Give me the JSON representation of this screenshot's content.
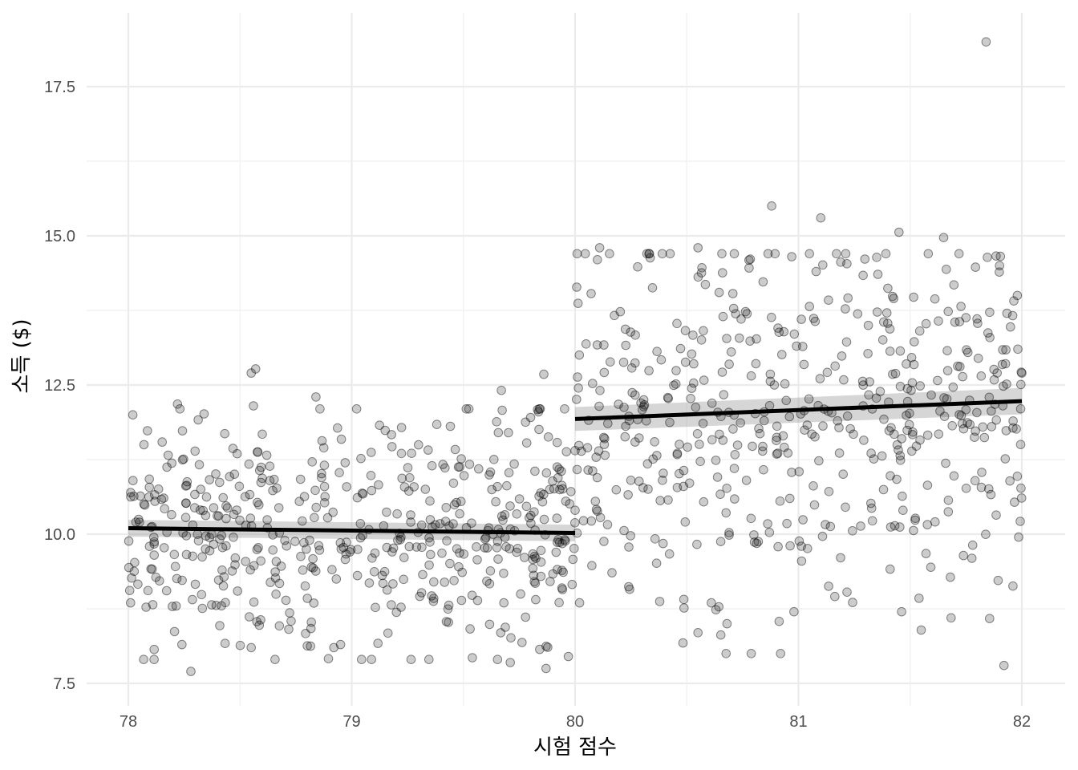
{
  "chart_data": {
    "type": "scatter",
    "xlabel": "시험 점수",
    "ylabel": "소득 ($)",
    "xlim": [
      77.83,
      82.2
    ],
    "ylim": [
      7.05,
      18.5
    ],
    "x_ticks": [
      78,
      79,
      80,
      81,
      82
    ],
    "x_tick_labels": [
      "78",
      "79",
      "80",
      "81",
      "82"
    ],
    "y_ticks": [
      7.5,
      10.0,
      12.5,
      15.0,
      17.5
    ],
    "y_tick_labels": [
      "7.5",
      "10.0",
      "12.5",
      "15.0",
      "17.5"
    ],
    "grid": true,
    "cutoff": 80,
    "fit_lines": [
      {
        "segment": "below-cutoff",
        "x": [
          78.0,
          80.0
        ],
        "y": [
          10.1,
          10.02
        ],
        "band_halfwidth": [
          0.14,
          0.14
        ]
      },
      {
        "segment": "above-cutoff",
        "x": [
          80.0,
          82.0
        ],
        "y": [
          11.93,
          12.23
        ],
        "band_halfwidth": [
          0.2,
          0.22
        ]
      }
    ],
    "points_summary": {
      "count_per_side": 500,
      "below_mean": 10.06,
      "below_sd": 1.0,
      "above_mean": 12.08,
      "above_sd": 1.45
    },
    "points": [
      {
        "x": 78.02,
        "y": 12.0
      },
      {
        "x": 78.57,
        "y": 12.77
      },
      {
        "x": 78.55,
        "y": 12.7
      },
      {
        "x": 78.22,
        "y": 12.18
      },
      {
        "x": 78.56,
        "y": 12.15
      },
      {
        "x": 78.84,
        "y": 12.3
      },
      {
        "x": 78.28,
        "y": 7.7
      },
      {
        "x": 78.92,
        "y": 8.1
      },
      {
        "x": 78.95,
        "y": 8.15
      },
      {
        "x": 78.55,
        "y": 8.1
      },
      {
        "x": 78.24,
        "y": 8.15
      },
      {
        "x": 79.67,
        "y": 12.41
      },
      {
        "x": 79.86,
        "y": 12.68
      },
      {
        "x": 79.87,
        "y": 7.75
      },
      {
        "x": 79.71,
        "y": 7.85
      },
      {
        "x": 79.54,
        "y": 7.93
      },
      {
        "x": 79.97,
        "y": 7.95
      },
      {
        "x": 80.88,
        "y": 15.5
      },
      {
        "x": 81.1,
        "y": 15.3
      },
      {
        "x": 81.45,
        "y": 15.06
      },
      {
        "x": 81.65,
        "y": 14.97
      },
      {
        "x": 80.1,
        "y": 14.6
      },
      {
        "x": 80.11,
        "y": 14.8
      },
      {
        "x": 80.55,
        "y": 14.8
      },
      {
        "x": 81.84,
        "y": 18.25
      },
      {
        "x": 81.92,
        "y": 7.8
      },
      {
        "x": 80.98,
        "y": 8.7
      },
      {
        "x": 80.55,
        "y": 8.35
      },
      {
        "x": 80.68,
        "y": 8.5
      },
      {
        "x": 80.61,
        "y": 8.85
      },
      {
        "x": 81.68,
        "y": 9.28
      },
      {
        "x": 81.96,
        "y": 9.13
      },
      {
        "x": 80.24,
        "y": 9.12
      },
      {
        "x": 80.97,
        "y": 14.65
      },
      {
        "x": 81.35,
        "y": 14.64
      },
      {
        "x": 81.9,
        "y": 14.5
      },
      {
        "x": 80.28,
        "y": 14.48
      },
      {
        "x": 80.66,
        "y": 14.38
      },
      {
        "x": 81.98,
        "y": 14.0
      },
      {
        "x": 82.0,
        "y": 12.7
      },
      {
        "x": 81.96,
        "y": 11.78
      },
      {
        "x": 81.98,
        "y": 10.97
      },
      {
        "x": 80.0,
        "y": 10.4
      },
      {
        "x": 80.02,
        "y": 8.85
      },
      {
        "x": 80.0,
        "y": 11.4
      },
      {
        "x": 78.01,
        "y": 8.85
      },
      {
        "x": 78.05,
        "y": 10.2
      },
      {
        "x": 78.07,
        "y": 11.5
      }
    ]
  }
}
